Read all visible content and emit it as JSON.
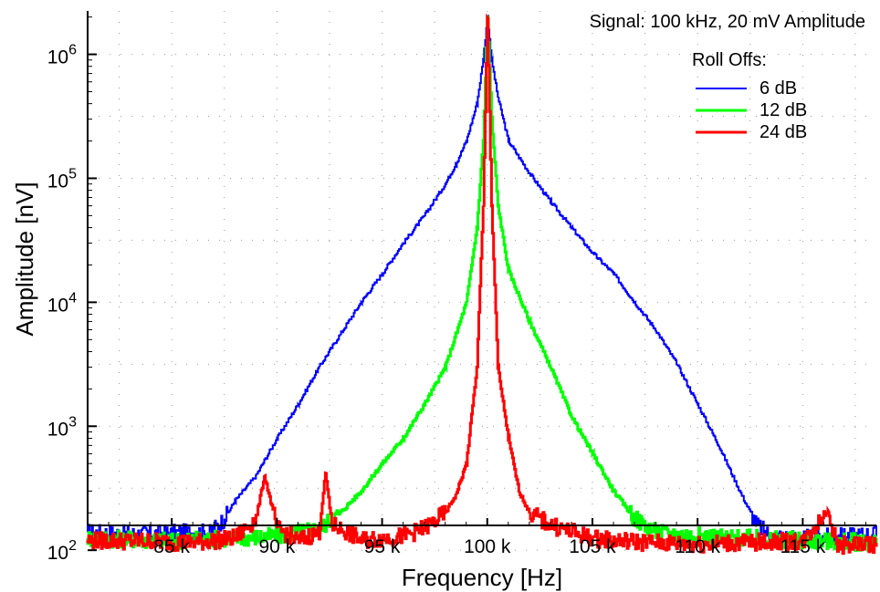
{
  "chart_data": {
    "type": "line",
    "xlabel": "Frequency [Hz]",
    "ylabel": "Amplitude [nV]",
    "annotation": "Signal: 100 kHz, 20 mV Amplitude",
    "legend_title": "Roll Offs:",
    "legend_position": "top-right",
    "grid": "dotted",
    "y_scale": "log",
    "x_lim": [
      81000,
      118500
    ],
    "y_lim": [
      2.2,
      6.35
    ],
    "x_ticks": [
      {
        "value": 85000,
        "label": "85 k"
      },
      {
        "value": 90000,
        "label": "90 k"
      },
      {
        "value": 95000,
        "label": "95 k"
      },
      {
        "value": 100000,
        "label": "100 k"
      },
      {
        "value": 105000,
        "label": "105 k"
      },
      {
        "value": 110000,
        "label": "110 k"
      },
      {
        "value": 115000,
        "label": "115 k"
      }
    ],
    "y_ticks": [
      {
        "exp": 2,
        "label_base": "10",
        "label_exp": "2"
      },
      {
        "exp": 3,
        "label_base": "10",
        "label_exp": "3"
      },
      {
        "exp": 4,
        "label_base": "10",
        "label_exp": "4"
      },
      {
        "exp": 5,
        "label_base": "10",
        "label_exp": "5"
      },
      {
        "exp": 6,
        "label_base": "10",
        "label_exp": "6"
      }
    ],
    "series": [
      {
        "name": "6 dB",
        "color": "#0000ff",
        "x": [
          81000,
          83000,
          85000,
          86800,
          87500,
          88000,
          89000,
          90000,
          91000,
          92000,
          93000,
          94000,
          95000,
          96000,
          97000,
          98000,
          98500,
          99000,
          99500,
          99800,
          100000,
          100200,
          100500,
          101000,
          102000,
          103000,
          104000,
          105000,
          106000,
          107000,
          108000,
          109000,
          110000,
          111000,
          112000,
          112800,
          113500,
          115000,
          117000,
          118500
        ],
        "y": [
          140,
          135,
          138,
          140,
          180,
          250,
          400,
          800,
          1500,
          3000,
          5500,
          10000,
          17000,
          30000,
          50000,
          90000,
          130000,
          200000,
          400000,
          900000,
          2000000,
          900000,
          450000,
          200000,
          110000,
          65000,
          40000,
          25000,
          17000,
          10000,
          6000,
          3200,
          1500,
          700,
          300,
          160,
          130,
          125,
          130,
          135
        ]
      },
      {
        "name": "12 dB",
        "color": "#00ff00",
        "x": [
          81000,
          85000,
          88000,
          90000,
          92000,
          93000,
          94000,
          95000,
          96000,
          97000,
          98000,
          99000,
          99500,
          99800,
          100000,
          100200,
          100500,
          101000,
          102000,
          103000,
          104000,
          105000,
          106000,
          107000,
          108000,
          110000,
          112000,
          115000,
          118500
        ],
        "y": [
          125,
          120,
          125,
          130,
          150,
          200,
          300,
          500,
          800,
          1500,
          3000,
          10000,
          40000,
          200000,
          2000000,
          300000,
          60000,
          18000,
          7000,
          3000,
          1200,
          600,
          300,
          180,
          140,
          130,
          125,
          120,
          115
        ]
      },
      {
        "name": "24 dB",
        "color": "#ff0000",
        "x": [
          81000,
          84000,
          86000,
          88000,
          89000,
          89400,
          90000,
          91000,
          92000,
          92300,
          92600,
          93000,
          94000,
          95000,
          96000,
          97000,
          98000,
          98500,
          99000,
          99500,
          99800,
          100000,
          100200,
          100500,
          101000,
          101500,
          102000,
          103000,
          104000,
          105000,
          106000,
          108000,
          110000,
          112000,
          115000,
          116200,
          116600,
          118500
        ],
        "y": [
          120,
          118,
          115,
          125,
          180,
          400,
          150,
          120,
          140,
          420,
          160,
          150,
          120,
          125,
          130,
          150,
          200,
          280,
          500,
          3000,
          60000,
          2000000,
          60000,
          3000,
          800,
          300,
          200,
          160,
          140,
          125,
          120,
          115,
          112,
          115,
          118,
          210,
          110,
          112
        ]
      }
    ]
  }
}
